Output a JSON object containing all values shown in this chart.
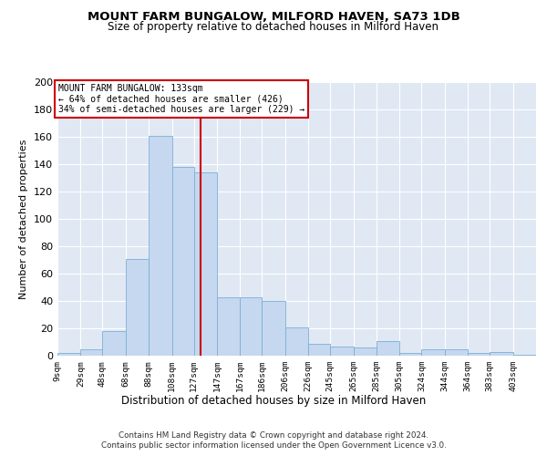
{
  "title1": "MOUNT FARM BUNGALOW, MILFORD HAVEN, SA73 1DB",
  "title2": "Size of property relative to detached houses in Milford Haven",
  "xlabel": "Distribution of detached houses by size in Milford Haven",
  "ylabel": "Number of detached properties",
  "bin_labels": [
    "9sqm",
    "29sqm",
    "48sqm",
    "68sqm",
    "88sqm",
    "108sqm",
    "127sqm",
    "147sqm",
    "167sqm",
    "186sqm",
    "206sqm",
    "226sqm",
    "245sqm",
    "265sqm",
    "285sqm",
    "305sqm",
    "324sqm",
    "344sqm",
    "364sqm",
    "383sqm",
    "403sqm"
  ],
  "bin_edges": [
    9,
    29,
    48,
    68,
    88,
    108,
    127,
    147,
    167,
    186,
    206,
    226,
    245,
    265,
    285,
    305,
    324,
    344,
    364,
    383,
    403,
    423
  ],
  "bar_heights": [
    2,
    5,
    18,
    71,
    161,
    138,
    134,
    43,
    43,
    40,
    21,
    9,
    7,
    6,
    11,
    2,
    5,
    5,
    2,
    3,
    1
  ],
  "bar_color": "#c5d8f0",
  "bar_edge_color": "#7bafd4",
  "property_line_x": 133,
  "property_line_color": "#cc0000",
  "annotation_title": "MOUNT FARM BUNGALOW: 133sqm",
  "annotation_line1": "← 64% of detached houses are smaller (426)",
  "annotation_line2": "34% of semi-detached houses are larger (229) →",
  "annotation_box_color": "#cc0000",
  "ylim": [
    0,
    200
  ],
  "yticks": [
    0,
    20,
    40,
    60,
    80,
    100,
    120,
    140,
    160,
    180,
    200
  ],
  "background_color": "#e0e8f4",
  "footer1": "Contains HM Land Registry data © Crown copyright and database right 2024.",
  "footer2": "Contains public sector information licensed under the Open Government Licence v3.0."
}
